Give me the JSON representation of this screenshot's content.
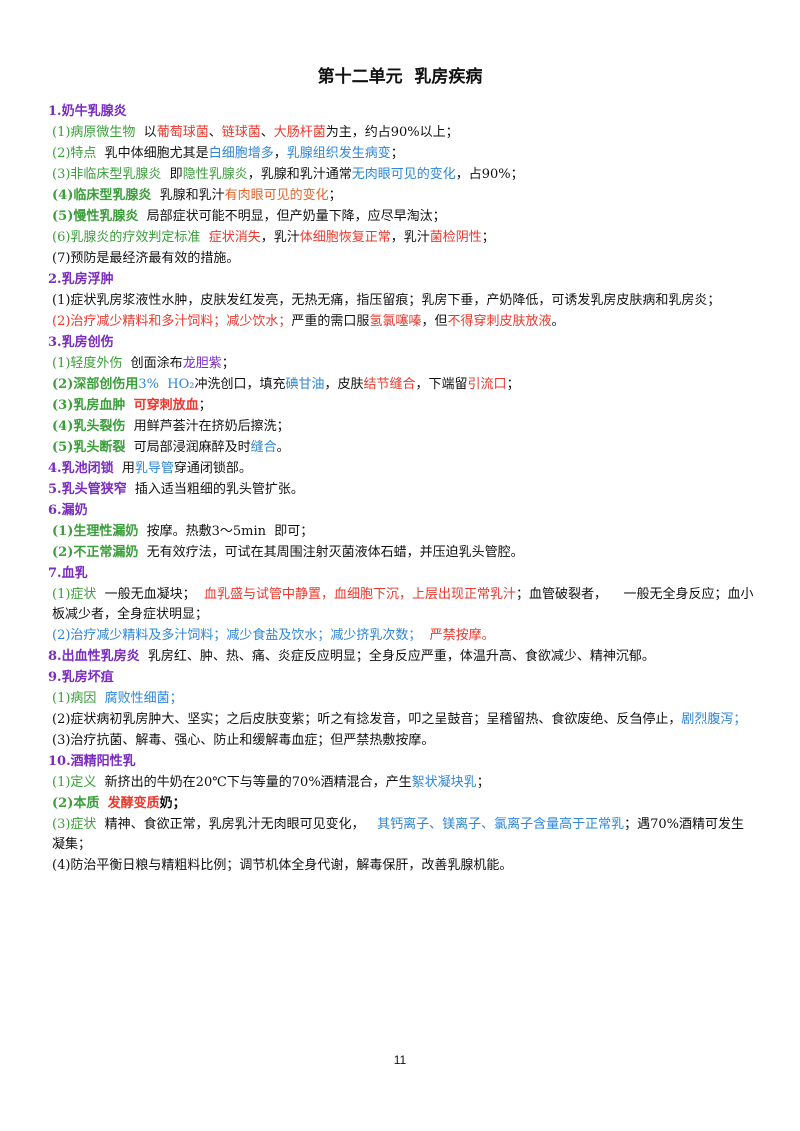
{
  "title": "第十二单元  乳房疾病",
  "sections": [
    {
      "heading": [
        {
          "text": "1.奶牛乳腺炎",
          "color": "#7a2cc0",
          "bold": true
        }
      ],
      "items": [
        [
          {
            "text": "(1)病原微生物",
            "color": "#3a9e3a"
          },
          {
            "text": "  以",
            "color": "#111111"
          },
          {
            "text": "葡萄球菌",
            "color": "#e8392c"
          },
          {
            "text": "、",
            "color": "#111111"
          },
          {
            "text": "链球菌",
            "color": "#e8392c"
          },
          {
            "text": "、",
            "color": "#111111"
          },
          {
            "text": "大肠杆菌",
            "color": "#e8392c"
          },
          {
            "text": "为主，约占90%以上；",
            "color": "#111111"
          }
        ],
        [
          {
            "text": "(2)特点",
            "color": "#3a9e3a"
          },
          {
            "text": "  乳中体细胞尤其是",
            "color": "#111111"
          },
          {
            "text": "白细胞增多",
            "color": "#2f86d6"
          },
          {
            "text": "，",
            "color": "#111111"
          },
          {
            "text": "乳腺组织发生病变",
            "color": "#2f86d6"
          },
          {
            "text": "；",
            "color": "#111111"
          }
        ],
        [
          {
            "text": "(3)非临床型乳腺炎",
            "color": "#3a9e3a"
          },
          {
            "text": "  即",
            "color": "#111111"
          },
          {
            "text": "隐性乳腺炎",
            "color": "#3a9e3a"
          },
          {
            "text": "，乳腺和乳汁通常",
            "color": "#111111"
          },
          {
            "text": "无肉眼可见的变化",
            "color": "#2f86d6"
          },
          {
            "text": "，占90%；",
            "color": "#111111"
          }
        ],
        [
          {
            "text": "(4)临床型乳腺炎",
            "color": "#3a9e3a",
            "bold": true
          },
          {
            "text": "  乳腺和乳汁",
            "color": "#111111"
          },
          {
            "text": "有肉眼可见的变化",
            "color": "#e0652a"
          },
          {
            "text": "；",
            "color": "#111111"
          }
        ],
        [
          {
            "text": "(5)慢性乳腺炎",
            "color": "#3a9e3a",
            "bold": true
          },
          {
            "text": "  局部症状可能不明显，但产奶量下降，应尽早淘汰；",
            "color": "#111111"
          }
        ],
        [
          {
            "text": "(6)乳腺炎的疗效判定标准",
            "color": "#3a9e3a"
          },
          {
            "text": "  ",
            "color": "#111111"
          },
          {
            "text": "症状消失",
            "color": "#e8392c"
          },
          {
            "text": "，乳汁",
            "color": "#111111"
          },
          {
            "text": "体细胞恢复正常",
            "color": "#e8392c"
          },
          {
            "text": "，乳汁",
            "color": "#111111"
          },
          {
            "text": "菌检阴性",
            "color": "#e8392c"
          },
          {
            "text": "；",
            "color": "#111111"
          }
        ],
        [
          {
            "text": "(7)预防是最经济最有效的措施。",
            "color": "#111111"
          }
        ]
      ]
    },
    {
      "heading": [
        {
          "text": "2.乳房浮肿",
          "color": "#7a2cc0",
          "bold": true
        }
      ],
      "items": [
        [
          {
            "text": "(1)症状乳房浆液性水肿，皮肤发红发亮，无热无痛，指压留痕；乳房下垂，产奶降低，可诱发乳房皮肤病和乳房炎；",
            "color": "#111111"
          }
        ],
        [
          {
            "text": "(2)治疗减少精料和多汁饲料；减少饮水；",
            "color": "#e8392c"
          },
          {
            "text": "严重的需口服",
            "color": "#111111"
          },
          {
            "text": "氢氯噻嗪",
            "color": "#e8392c"
          },
          {
            "text": "，但",
            "color": "#111111"
          },
          {
            "text": "不得穿刺皮肤放液",
            "color": "#e8392c"
          },
          {
            "text": "。",
            "color": "#111111"
          }
        ]
      ]
    },
    {
      "heading": [
        {
          "text": "3.乳房创伤",
          "color": "#7a2cc0",
          "bold": true
        }
      ],
      "items": [
        [
          {
            "text": "(1)轻度外伤",
            "color": "#3a9e3a"
          },
          {
            "text": "  创面涂布",
            "color": "#111111"
          },
          {
            "text": "龙胆紫",
            "color": "#7a2cc0"
          },
          {
            "text": "；",
            "color": "#111111"
          }
        ],
        [
          {
            "text": "(2)深部创伤用",
            "color": "#3a9e3a",
            "bold": true
          },
          {
            "text": "3%  HO₂",
            "color": "#2f86d6"
          },
          {
            "text": "冲洗创口，填充",
            "color": "#111111"
          },
          {
            "text": "碘甘油",
            "color": "#2f86d6"
          },
          {
            "text": "，皮肤",
            "color": "#111111"
          },
          {
            "text": "结节缝合",
            "color": "#e8392c"
          },
          {
            "text": "，下端留",
            "color": "#111111"
          },
          {
            "text": "引流口",
            "color": "#e8392c"
          },
          {
            "text": "；",
            "color": "#111111"
          }
        ],
        [
          {
            "text": "(3)乳房血肿",
            "color": "#3a9e3a",
            "bold": true
          },
          {
            "text": "  ",
            "color": "#111111"
          },
          {
            "text": "可穿刺放血",
            "color": "#e8392c",
            "bold": true
          },
          {
            "text": "；",
            "color": "#111111"
          }
        ],
        [
          {
            "text": "(4)乳头裂伤",
            "color": "#3a9e3a",
            "bold": true
          },
          {
            "text": "  用鲜芦荟汁在挤奶后擦洗；",
            "color": "#111111"
          }
        ],
        [
          {
            "text": "(5)乳头断裂",
            "color": "#3a9e3a",
            "bold": true
          },
          {
            "text": "  可局部浸润麻醉及时",
            "color": "#111111"
          },
          {
            "text": "缝合",
            "color": "#2f86d6"
          },
          {
            "text": "。",
            "color": "#111111"
          }
        ]
      ]
    },
    {
      "heading": [
        {
          "text": "4.乳池闭锁",
          "color": "#7a2cc0",
          "bold": true
        },
        {
          "text": "  用",
          "color": "#111111"
        },
        {
          "text": "乳导管",
          "color": "#2f86d6"
        },
        {
          "text": "穿通闭锁部。",
          "color": "#111111"
        }
      ],
      "items": []
    },
    {
      "heading": [
        {
          "text": "5.乳头管狭窄",
          "color": "#7a2cc0",
          "bold": true
        },
        {
          "text": "  插入适当粗细的乳头管扩张。",
          "color": "#111111"
        }
      ],
      "items": []
    },
    {
      "heading": [
        {
          "text": "6.漏奶",
          "color": "#7a2cc0",
          "bold": true
        }
      ],
      "items": [
        [
          {
            "text": "(1)生理性漏奶",
            "color": "#3a9e3a",
            "bold": true
          },
          {
            "text": "  按摩。热敷3～5min  即可；",
            "color": "#111111"
          }
        ],
        [
          {
            "text": "(2)不正常漏奶",
            "color": "#3a9e3a",
            "bold": true
          },
          {
            "text": "  无有效疗法，可试在其周围注射灭菌液体石蜡，并压迫乳头管腔。",
            "color": "#111111"
          }
        ]
      ]
    },
    {
      "heading": [
        {
          "text": "7.血乳",
          "color": "#7a2cc0",
          "bold": true
        }
      ],
      "items": [
        [
          {
            "text": "(1)症状",
            "color": "#3a9e3a"
          },
          {
            "text": "  一般无血凝块；  ",
            "color": "#111111"
          },
          {
            "text": "血乳盛与试管中静置，血细胞下沉，上层出现正常乳汁",
            "color": "#e8392c"
          },
          {
            "text": "；血管破裂者，    一般无全身反应；血小板减少者，全身症状明显；",
            "color": "#111111"
          }
        ],
        [
          {
            "text": "(2)治疗减少精料及多汁饲料；减少食盐及饮水；减少挤乳次数；",
            "color": "#2f86d6"
          },
          {
            "text": "  严禁按摩。",
            "color": "#e8392c"
          }
        ]
      ]
    },
    {
      "heading": [
        {
          "text": "8.出血性乳房炎",
          "color": "#7a2cc0",
          "bold": true
        },
        {
          "text": "  乳房红、肿、热、痛、炎症反应明显；全身反应严重，体温升高、食欲减少、精神沉郁。",
          "color": "#111111"
        }
      ],
      "items": []
    },
    {
      "heading": [
        {
          "text": "9.乳房坏疽",
          "color": "#7a2cc0",
          "bold": true
        }
      ],
      "items": [
        [
          {
            "text": "(1)病因",
            "color": "#3a9e3a"
          },
          {
            "text": "  腐败性细菌；",
            "color": "#2f86d6"
          }
        ],
        [
          {
            "text": "(2)症状病初乳房肿大、坚实；之后皮肤变紫；听之有捻发音，叩之呈鼓音；呈稽留热、食欲废绝、反刍停止，",
            "color": "#111111"
          },
          {
            "text": "剧烈腹泻；",
            "color": "#2f86d6"
          }
        ],
        [
          {
            "text": "(3)治疗抗菌、解毒、强心、防止和缓解毒血症；但严禁热敷按摩。",
            "color": "#111111"
          }
        ]
      ]
    },
    {
      "heading": [
        {
          "text": "10.酒精阳性乳",
          "color": "#7a2cc0",
          "bold": true
        }
      ],
      "items": [
        [
          {
            "text": "(1)定义",
            "color": "#3a9e3a"
          },
          {
            "text": "  新挤出的牛奶在20℃下与等量的70%酒精混合，产生",
            "color": "#111111"
          },
          {
            "text": "絮状凝块乳",
            "color": "#2f86d6"
          },
          {
            "text": "；",
            "color": "#111111"
          }
        ],
        [
          {
            "text": "(2)本质",
            "color": "#3a9e3a",
            "bold": true
          },
          {
            "text": "  ",
            "color": "#111111"
          },
          {
            "text": "发酵变质",
            "color": "#e8392c",
            "bold": true
          },
          {
            "text": "奶；",
            "color": "#111111",
            "bold": true
          }
        ],
        [
          {
            "text": "(3)症状",
            "color": "#3a9e3a"
          },
          {
            "text": "  精神、食欲正常，乳房乳汁无肉眼可见变化，   ",
            "color": "#111111"
          },
          {
            "text": "其钙离子、镁离子、氯离子含量高于正常乳",
            "color": "#2f86d6"
          },
          {
            "text": "；遇70%酒精可发生凝集；",
            "color": "#111111"
          }
        ],
        [
          {
            "text": "(4)防治平衡日粮与精粗料比例；调节机体全身代谢，解毒保肝，改善乳腺机能。",
            "color": "#111111"
          }
        ]
      ]
    }
  ],
  "page_number": "11"
}
